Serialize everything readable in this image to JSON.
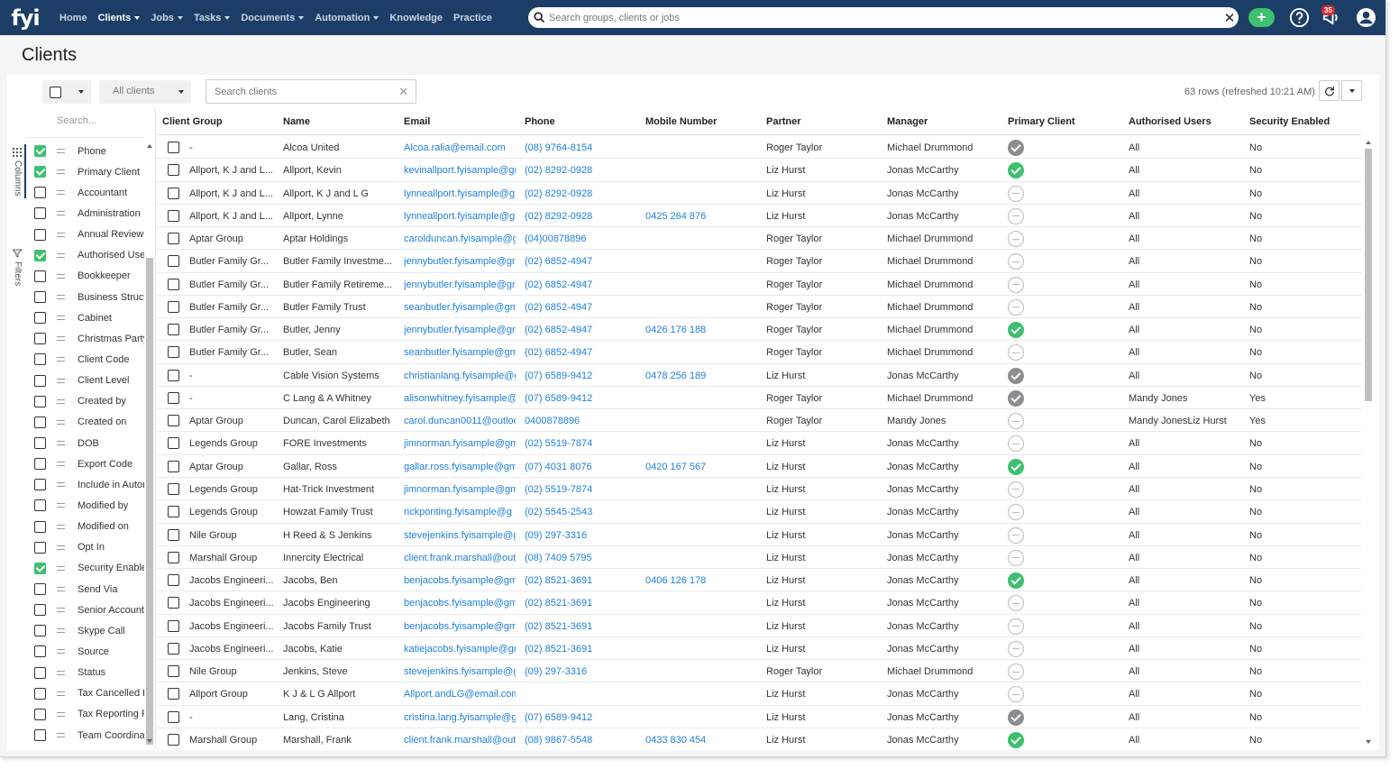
{
  "app": {
    "logo_text": "fyi",
    "brand_color": "#1c3e66",
    "accent_color": "#3ec06f",
    "link_color": "#1e7fd8"
  },
  "nav": {
    "items": [
      {
        "label": "Home",
        "dropdown": false,
        "active": false
      },
      {
        "label": "Clients",
        "dropdown": true,
        "active": true
      },
      {
        "label": "Jobs",
        "dropdown": true,
        "active": false
      },
      {
        "label": "Tasks",
        "dropdown": true,
        "active": false
      },
      {
        "label": "Documents",
        "dropdown": true,
        "active": false
      },
      {
        "label": "Automation",
        "dropdown": true,
        "active": false
      },
      {
        "label": "Knowledge",
        "dropdown": false,
        "active": false
      },
      {
        "label": "Practice",
        "dropdown": false,
        "active": false
      }
    ],
    "search_placeholder": "Search groups, clients or jobs",
    "add_icon": "plus-icon",
    "help_icon": "question-circle-icon",
    "notifications_icon": "megaphone-icon",
    "notification_count": "35",
    "user_icon": "user-avatar-icon"
  },
  "page": {
    "title": "Clients"
  },
  "toolbar": {
    "filter_value": "All clients",
    "search_placeholder": "Search clients",
    "rows_info": "63 rows  (refreshed 10:21 AM)",
    "refresh_icon": "refresh-icon"
  },
  "side_tabs": {
    "columns_label": "Columns",
    "filters_label": "Filters"
  },
  "columns_panel": {
    "search_placeholder": "Search...",
    "items": [
      {
        "name": "Phone",
        "checked": true
      },
      {
        "name": "Primary Client",
        "checked": true
      },
      {
        "name": "Accountant",
        "checked": false
      },
      {
        "name": "Administration",
        "checked": false
      },
      {
        "name": "Annual Review",
        "checked": false
      },
      {
        "name": "Authorised Users",
        "checked": true
      },
      {
        "name": "Bookkeeper",
        "checked": false
      },
      {
        "name": "Business Structure",
        "checked": false
      },
      {
        "name": "Cabinet",
        "checked": false
      },
      {
        "name": "Christmas Party",
        "checked": false
      },
      {
        "name": "Client Code",
        "checked": false
      },
      {
        "name": "Client Level",
        "checked": false
      },
      {
        "name": "Created by",
        "checked": false
      },
      {
        "name": "Created on",
        "checked": false
      },
      {
        "name": "DOB",
        "checked": false
      },
      {
        "name": "Export Code",
        "checked": false
      },
      {
        "name": "Include in Automation",
        "checked": false
      },
      {
        "name": "Modified by",
        "checked": false
      },
      {
        "name": "Modified on",
        "checked": false
      },
      {
        "name": "Opt In",
        "checked": false
      },
      {
        "name": "Security Enabled",
        "checked": true
      },
      {
        "name": "Send Via",
        "checked": false
      },
      {
        "name": "Senior Accountant",
        "checked": false
      },
      {
        "name": "Skype Call",
        "checked": false
      },
      {
        "name": "Source",
        "checked": false
      },
      {
        "name": "Status",
        "checked": false
      },
      {
        "name": "Tax Cancelled Date",
        "checked": false
      },
      {
        "name": "Tax Reporting Period",
        "checked": false
      },
      {
        "name": "Team Coordinator",
        "checked": false
      }
    ]
  },
  "table": {
    "columns": [
      "Client Group",
      "Name",
      "Email",
      "Phone",
      "Mobile Number",
      "Partner",
      "Manager",
      "Primary Client",
      "Authorised Users",
      "Security Enabled"
    ],
    "rows": [
      {
        "group": "-",
        "name": "Alcoa United",
        "email": "Alcoa.ralia@email.com",
        "phone": "(08) 9764-8154",
        "mobile": "",
        "partner": "Roger Taylor",
        "manager": "Michael Drummond",
        "primary": "grey",
        "auth": "All",
        "security": "No"
      },
      {
        "group": "Allport, K J and L...",
        "name": "Allport, Kevin",
        "email": "kevinallport.fyisample@gr",
        "phone": "(02) 8292-0928",
        "mobile": "",
        "partner": "Liz Hurst",
        "manager": "Jonas McCarthy",
        "primary": "yes",
        "auth": "All",
        "security": "No"
      },
      {
        "group": "Allport, K J and L...",
        "name": "Allport, K J and L G",
        "email": "lynneallport.fyisample@g",
        "phone": "(02) 8292-0928",
        "mobile": "",
        "partner": "Liz Hurst",
        "manager": "Jonas McCarthy",
        "primary": "no",
        "auth": "All",
        "security": "No"
      },
      {
        "group": "Allport, K J and L...",
        "name": "Allport, Lynne",
        "email": "lynneallport.fyisample@g",
        "phone": "(02) 8292-0928",
        "mobile": "0425 264 876",
        "partner": "Liz Hurst",
        "manager": "Jonas McCarthy",
        "primary": "no",
        "auth": "All",
        "security": "No"
      },
      {
        "group": "Aptar Group",
        "name": "Aptar Holdings",
        "email": "carolduncan.fyisample@g",
        "phone": "(04)00878896",
        "mobile": "",
        "partner": "Roger Taylor",
        "manager": "Michael Drummond",
        "primary": "no",
        "auth": "All",
        "security": "No"
      },
      {
        "group": "Butler Family Gr...",
        "name": "Butler Family Investme...",
        "email": "jennybutler.fyisample@gr",
        "phone": "(02) 6852-4947",
        "mobile": "",
        "partner": "Roger Taylor",
        "manager": "Michael Drummond",
        "primary": "no",
        "auth": "All",
        "security": "No"
      },
      {
        "group": "Butler Family Gr...",
        "name": "Butler Family Retireme...",
        "email": "jennybutler.fyisample@gr",
        "phone": "(02) 6852-4947",
        "mobile": "",
        "partner": "Roger Taylor",
        "manager": "Michael Drummond",
        "primary": "no",
        "auth": "All",
        "security": "No"
      },
      {
        "group": "Butler Family Gr...",
        "name": "Butler Family Trust",
        "email": "seanbutler.fyisample@gm",
        "phone": "(02) 6852-4947",
        "mobile": "",
        "partner": "Roger Taylor",
        "manager": "Michael Drummond",
        "primary": "no",
        "auth": "All",
        "security": "No"
      },
      {
        "group": "Butler Family Gr...",
        "name": "Butler, Jenny",
        "email": "jennybutler.fyisample@gr",
        "phone": "(02) 6852-4947",
        "mobile": "0426 176 188",
        "partner": "Roger Taylor",
        "manager": "Michael Drummond",
        "primary": "yes",
        "auth": "All",
        "security": "No"
      },
      {
        "group": "Butler Family Gr...",
        "name": "Butler, Sean",
        "email": "seanbutler.fyisample@gm",
        "phone": "(02) 6852-4947",
        "mobile": "",
        "partner": "Roger Taylor",
        "manager": "Michael Drummond",
        "primary": "no",
        "auth": "All",
        "security": "No"
      },
      {
        "group": "-",
        "name": "Cable Vision Systems",
        "email": "christianlang.fyisample@g",
        "phone": "(07) 6589-9412",
        "mobile": "0478 256 189",
        "partner": "Liz Hurst",
        "manager": "Jonas McCarthy",
        "primary": "grey",
        "auth": "All",
        "security": "No"
      },
      {
        "group": "-",
        "name": "C Lang & A Whitney",
        "email": "alisonwhitney.fyisample@",
        "phone": "(07) 6589-9412",
        "mobile": "",
        "partner": "Roger Taylor",
        "manager": "Michael Drummond",
        "primary": "grey",
        "auth": "Mandy Jones",
        "security": "Yes"
      },
      {
        "group": "Aptar Group",
        "name": "Duncan, Carol Elizabeth",
        "email": "carol.duncan0011@outloo",
        "phone": "0400878896",
        "mobile": "",
        "partner": "Roger Taylor",
        "manager": "Mandy Jones",
        "primary": "no",
        "auth": "Mandy JonesLiz Hurst",
        "security": "Yes"
      },
      {
        "group": "Legends Group",
        "name": "FORE Investments",
        "email": "jimnorman.fyisample@gm",
        "phone": "(02) 5519-7874",
        "mobile": "",
        "partner": "Liz Hurst",
        "manager": "Jonas McCarthy",
        "primary": "no",
        "auth": "All",
        "security": "No"
      },
      {
        "group": "Aptar Group",
        "name": "Gallar, Ross",
        "email": "gallar.ross.fyisample@gm",
        "phone": "(07) 4031 8076",
        "mobile": "0420 167 567",
        "partner": "Liz Hurst",
        "manager": "Jonas McCarthy",
        "primary": "yes",
        "auth": "All",
        "security": "No"
      },
      {
        "group": "Legends Group",
        "name": "Hat-Trick Investment",
        "email": "jimnorman.fyisample@gm",
        "phone": "(02) 5519-7874",
        "mobile": "",
        "partner": "Liz Hurst",
        "manager": "Jonas McCarthy",
        "primary": "no",
        "auth": "All",
        "security": "No"
      },
      {
        "group": "Legends Group",
        "name": "Howzat Family Trust",
        "email": "rickponting.fyisample@g",
        "phone": "(02) 5545-2543",
        "mobile": "",
        "partner": "Liz Hurst",
        "manager": "Jonas McCarthy",
        "primary": "no",
        "auth": "All",
        "security": "No"
      },
      {
        "group": "Nile Group",
        "name": "H Reed & S Jenkins",
        "email": "stevejenkins.fyisample@g",
        "phone": "(09) 297-3316",
        "mobile": "",
        "partner": "Liz Hurst",
        "manager": "Jonas McCarthy",
        "primary": "no",
        "auth": "All",
        "security": "No"
      },
      {
        "group": "Marshall Group",
        "name": "Innercity Electrical",
        "email": "client.frank.marshall@out",
        "phone": "(08) 7409 5795",
        "mobile": "",
        "partner": "Liz Hurst",
        "manager": "Jonas McCarthy",
        "primary": "no",
        "auth": "All",
        "security": "No"
      },
      {
        "group": "Jacobs Engineeri...",
        "name": "Jacobs, Ben",
        "email": "benjacobs.fyisample@gm",
        "phone": "(02) 8521-3691",
        "mobile": "0406 126 178",
        "partner": "Liz Hurst",
        "manager": "Jonas McCarthy",
        "primary": "yes",
        "auth": "All",
        "security": "No"
      },
      {
        "group": "Jacobs Engineeri...",
        "name": "Jacobs Engineering",
        "email": "benjacobs.fyisample@gm",
        "phone": "(02) 8521-3691",
        "mobile": "",
        "partner": "Liz Hurst",
        "manager": "Jonas McCarthy",
        "primary": "no",
        "auth": "All",
        "security": "No"
      },
      {
        "group": "Jacobs Engineeri...",
        "name": "Jacobs Family Trust",
        "email": "benjacobs.fyisample@gm",
        "phone": "(02) 8521-3691",
        "mobile": "",
        "partner": "Liz Hurst",
        "manager": "Jonas McCarthy",
        "primary": "no",
        "auth": "All",
        "security": "No"
      },
      {
        "group": "Jacobs Engineeri...",
        "name": "Jacobs, Katie",
        "email": "katiejacobs.fyisample@gm",
        "phone": "(02) 8521-3691",
        "mobile": "",
        "partner": "Liz Hurst",
        "manager": "Jonas McCarthy",
        "primary": "no",
        "auth": "All",
        "security": "No"
      },
      {
        "group": "Nile Group",
        "name": "Jenkins, Steve",
        "email": "stevejenkins.fyisample@g",
        "phone": "(09) 297-3316",
        "mobile": "",
        "partner": "Roger Taylor",
        "manager": "Michael Drummond",
        "primary": "no",
        "auth": "All",
        "security": "No"
      },
      {
        "group": "Allport Group",
        "name": "K J & L G Allport",
        "email": "Allport.andLG@email.com",
        "phone": "",
        "mobile": "",
        "partner": "Liz Hurst",
        "manager": "Jonas McCarthy",
        "primary": "no",
        "auth": "All",
        "security": "No"
      },
      {
        "group": "-",
        "name": "Lang, Cristina",
        "email": "cristina.lang.fyisample@g",
        "phone": "(07) 6589-9412",
        "mobile": "",
        "partner": "Liz Hurst",
        "manager": "Jonas McCarthy",
        "primary": "grey",
        "auth": "All",
        "security": "No"
      },
      {
        "group": "Marshall Group",
        "name": "Marshall, Frank",
        "email": "client.frank.marshall@out",
        "phone": "(08) 9867-5548",
        "mobile": "0433 830 454",
        "partner": "Liz Hurst",
        "manager": "Jonas McCarthy",
        "primary": "yes",
        "auth": "All",
        "security": "No"
      }
    ]
  }
}
